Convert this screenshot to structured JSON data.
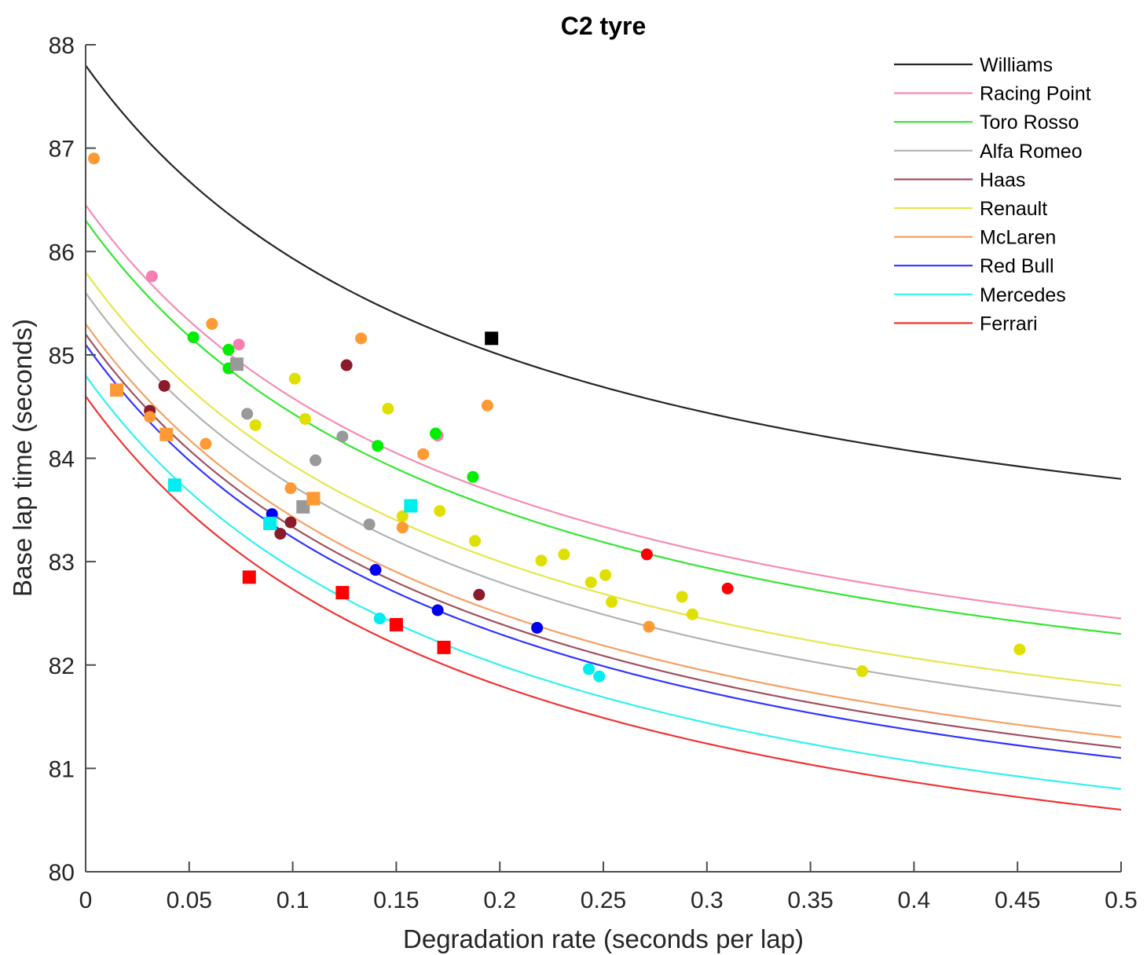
{
  "chart_data": {
    "type": "scatter",
    "title": "C2 tyre",
    "xlabel": "Degradation rate (seconds per lap)",
    "ylabel": "Base lap time (seconds)",
    "xlim": [
      0,
      0.5
    ],
    "ylim": [
      80,
      88
    ],
    "xticks": [
      0,
      0.05,
      0.1,
      0.15,
      0.2,
      0.25,
      0.3,
      0.35,
      0.4,
      0.45,
      0.5
    ],
    "xtick_labels": [
      "0",
      "0.05",
      "0.1",
      "0.15",
      "0.2",
      "0.25",
      "0.3",
      "0.35",
      "0.4",
      "0.45",
      "0.5"
    ],
    "yticks": [
      80,
      81,
      82,
      83,
      84,
      85,
      86,
      87,
      88
    ],
    "ytick_labels": [
      "80",
      "81",
      "82",
      "83",
      "84",
      "85",
      "86",
      "87",
      "88"
    ],
    "grid": false,
    "legend_position": "top-right",
    "series": [
      {
        "name": "Williams",
        "color": "#262626",
        "marker_color": "#000000",
        "curve": {
          "y_at_0": 87.8,
          "y_at_0_5": 83.8
        },
        "circles": [],
        "squares": [
          [
            0.196,
            85.16
          ]
        ]
      },
      {
        "name": "Racing Point",
        "color": "#f58cb4",
        "marker_color": "#f57fb0",
        "curve": {
          "y_at_0": 86.45,
          "y_at_0_5": 82.45
        },
        "circles": [
          [
            0.032,
            85.76
          ],
          [
            0.074,
            85.1
          ],
          [
            0.17,
            84.22
          ]
        ],
        "squares": []
      },
      {
        "name": "Toro Rosso",
        "color": "#33e633",
        "marker_color": "#00ee00",
        "curve": {
          "y_at_0": 86.3,
          "y_at_0_5": 82.3
        },
        "circles": [
          [
            0.052,
            85.17
          ],
          [
            0.069,
            85.05
          ],
          [
            0.069,
            84.87
          ],
          [
            0.141,
            84.12
          ],
          [
            0.169,
            84.24
          ],
          [
            0.187,
            83.82
          ]
        ],
        "squares": []
      },
      {
        "name": "Alfa Romeo",
        "color": "#b3b3b3",
        "marker_color": "#999999",
        "curve": {
          "y_at_0": 85.6,
          "y_at_0_5": 81.6
        },
        "circles": [
          [
            0.078,
            84.43
          ],
          [
            0.111,
            83.98
          ],
          [
            0.124,
            84.21
          ],
          [
            0.137,
            83.36
          ]
        ],
        "squares": [
          [
            0.073,
            84.91
          ],
          [
            0.105,
            83.53
          ]
        ]
      },
      {
        "name": "Haas",
        "color": "#a05060",
        "marker_color": "#8b1a2b",
        "curve": {
          "y_at_0": 85.2,
          "y_at_0_5": 81.2
        },
        "circles": [
          [
            0.031,
            84.46
          ],
          [
            0.038,
            84.7
          ],
          [
            0.094,
            83.27
          ],
          [
            0.099,
            83.38
          ],
          [
            0.126,
            84.9
          ],
          [
            0.19,
            82.68
          ]
        ],
        "squares": []
      },
      {
        "name": "Renault",
        "color": "#e6e64d",
        "marker_color": "#e0e000",
        "curve": {
          "y_at_0": 85.8,
          "y_at_0_5": 81.8
        },
        "circles": [
          [
            0.082,
            84.32
          ],
          [
            0.101,
            84.77
          ],
          [
            0.106,
            84.38
          ],
          [
            0.146,
            84.48
          ],
          [
            0.153,
            83.44
          ],
          [
            0.171,
            83.49
          ],
          [
            0.188,
            83.2
          ],
          [
            0.22,
            83.01
          ],
          [
            0.231,
            83.07
          ],
          [
            0.244,
            82.8
          ],
          [
            0.251,
            82.87
          ],
          [
            0.254,
            82.61
          ],
          [
            0.288,
            82.66
          ],
          [
            0.293,
            82.49
          ],
          [
            0.375,
            81.94
          ],
          [
            0.451,
            82.15
          ]
        ],
        "squares": []
      },
      {
        "name": "McLaren",
        "color": "#f5a064",
        "marker_color": "#ff9933",
        "curve": {
          "y_at_0": 85.3,
          "y_at_0_5": 81.3
        },
        "circles": [
          [
            0.004,
            86.9
          ],
          [
            0.031,
            84.4
          ],
          [
            0.058,
            84.14
          ],
          [
            0.061,
            85.3
          ],
          [
            0.099,
            83.71
          ],
          [
            0.133,
            85.16
          ],
          [
            0.153,
            83.33
          ],
          [
            0.163,
            84.04
          ],
          [
            0.194,
            84.51
          ],
          [
            0.272,
            82.37
          ]
        ],
        "squares": [
          [
            0.015,
            84.66
          ],
          [
            0.039,
            84.23
          ],
          [
            0.11,
            83.61
          ]
        ]
      },
      {
        "name": "Red Bull",
        "color": "#3333ff",
        "marker_color": "#0000f0",
        "curve": {
          "y_at_0": 85.1,
          "y_at_0_5": 81.1
        },
        "circles": [
          [
            0.09,
            83.46
          ],
          [
            0.14,
            82.92
          ],
          [
            0.17,
            82.53
          ],
          [
            0.218,
            82.36
          ]
        ],
        "squares": []
      },
      {
        "name": "Mercedes",
        "color": "#33f0f0",
        "marker_color": "#00eeee",
        "curve": {
          "y_at_0": 84.8,
          "y_at_0_5": 80.8
        },
        "circles": [
          [
            0.142,
            82.45
          ],
          [
            0.243,
            81.96
          ],
          [
            0.248,
            81.89
          ]
        ],
        "squares": [
          [
            0.043,
            83.74
          ],
          [
            0.089,
            83.37
          ],
          [
            0.157,
            83.54
          ]
        ]
      },
      {
        "name": "Ferrari",
        "color": "#f03333",
        "marker_color": "#ff0000",
        "curve": {
          "y_at_0": 84.6,
          "y_at_0_5": 80.6
        },
        "circles": [
          [
            0.271,
            83.07
          ],
          [
            0.31,
            82.74
          ]
        ],
        "squares": [
          [
            0.079,
            82.85
          ],
          [
            0.124,
            82.7
          ],
          [
            0.15,
            82.39
          ],
          [
            0.173,
            82.17
          ]
        ]
      }
    ]
  }
}
